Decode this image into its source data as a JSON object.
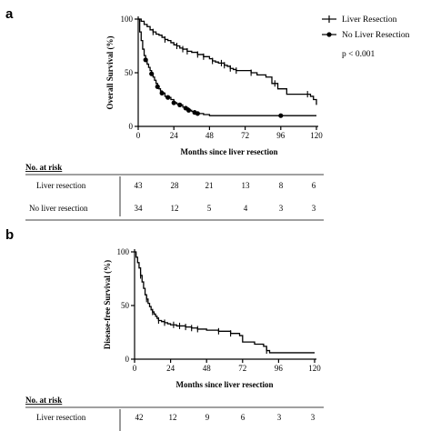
{
  "chart_data": [
    {
      "panel": "a",
      "type": "line",
      "ylabel": "Overall Survival (%)",
      "xlabel": "Months since liver resection",
      "xlim": [
        0,
        120
      ],
      "ylim": [
        0,
        100
      ],
      "xticks": [
        "0",
        "24",
        "48",
        "72",
        "96",
        "120"
      ],
      "yticks": [
        "0",
        "50",
        "100"
      ],
      "legend_position": "top-right",
      "annotation": "p < 0.001",
      "series": [
        {
          "name": "Liver Resection",
          "marker": "plus",
          "x": [
            0,
            2,
            4,
            6,
            8,
            10,
            12,
            14,
            16,
            18,
            20,
            22,
            24,
            26,
            28,
            30,
            33,
            36,
            40,
            44,
            48,
            50,
            52,
            54,
            56,
            58,
            60,
            62,
            64,
            66,
            72,
            76,
            80,
            86,
            90,
            94,
            100,
            108,
            114,
            116,
            118,
            120
          ],
          "y": [
            100,
            98,
            95,
            93,
            90,
            88,
            86,
            85,
            83,
            81,
            80,
            78,
            76,
            75,
            73,
            72,
            70,
            69,
            67,
            65,
            63,
            61,
            60,
            59,
            59,
            57,
            56,
            54,
            53,
            52,
            52,
            50,
            48,
            46,
            40,
            35,
            30,
            30,
            30,
            28,
            25,
            20
          ],
          "censor_x": [
            10,
            18,
            26,
            30,
            33,
            40,
            44,
            50,
            56,
            58,
            62,
            66,
            76,
            92,
            114
          ]
        },
        {
          "name": "No Liver Resection",
          "marker": "circle",
          "x": [
            0,
            1,
            2,
            3,
            4,
            5,
            6,
            7,
            8,
            9,
            10,
            11,
            12,
            13,
            14,
            15,
            16,
            18,
            20,
            22,
            24,
            26,
            28,
            30,
            32,
            34,
            36,
            38,
            40,
            44,
            48,
            60,
            96,
            120
          ],
          "y": [
            100,
            88,
            80,
            72,
            66,
            62,
            58,
            55,
            52,
            49,
            46,
            43,
            40,
            37,
            35,
            33,
            31,
            28,
            27,
            25,
            22,
            21,
            20,
            18,
            17,
            15,
            14,
            13,
            12,
            11,
            10,
            10,
            10,
            10
          ],
          "censor_x": [
            5,
            9,
            13,
            16,
            20,
            24,
            28,
            32,
            34,
            38,
            40,
            96
          ]
        }
      ],
      "risk_table": {
        "header": "No. at risk",
        "rows": [
          {
            "label": "Liver resection",
            "values": [
              "43",
              "28",
              "21",
              "13",
              "8",
              "6"
            ]
          },
          {
            "label": "No liver resection",
            "values": [
              "34",
              "12",
              "5",
              "4",
              "3",
              "3"
            ]
          }
        ]
      }
    },
    {
      "panel": "b",
      "type": "line",
      "ylabel": "Disease-free Survival (%)",
      "xlabel": "Months since liver resection",
      "xlim": [
        0,
        120
      ],
      "ylim": [
        0,
        100
      ],
      "xticks": [
        "0",
        "24",
        "48",
        "72",
        "96",
        "120"
      ],
      "yticks": [
        "0",
        "50",
        "100"
      ],
      "series": [
        {
          "name": "Liver resection",
          "marker": "plus",
          "x": [
            0,
            1,
            2,
            3,
            4,
            5,
            6,
            7,
            8,
            9,
            10,
            11,
            12,
            13,
            14,
            15,
            16,
            18,
            20,
            22,
            24,
            26,
            28,
            30,
            34,
            38,
            42,
            48,
            56,
            64,
            70,
            72,
            80,
            86,
            88,
            90,
            120
          ],
          "y": [
            100,
            95,
            90,
            85,
            78,
            72,
            66,
            60,
            56,
            52,
            49,
            46,
            44,
            42,
            40,
            38,
            36,
            35,
            34,
            33,
            32,
            32,
            31,
            31,
            30,
            29,
            28,
            27,
            26,
            24,
            22,
            16,
            14,
            12,
            8,
            6,
            6
          ],
          "censor_x": [
            4,
            8,
            12,
            16,
            20,
            26,
            30,
            34,
            38,
            42,
            56,
            64,
            88
          ]
        }
      ],
      "risk_table": {
        "header": "No. at risk",
        "rows": [
          {
            "label": "Liver resection",
            "values": [
              "42",
              "12",
              "9",
              "6",
              "3",
              "3"
            ]
          }
        ]
      }
    }
  ],
  "colors": {
    "line": "#000000",
    "background": "#ffffff"
  }
}
